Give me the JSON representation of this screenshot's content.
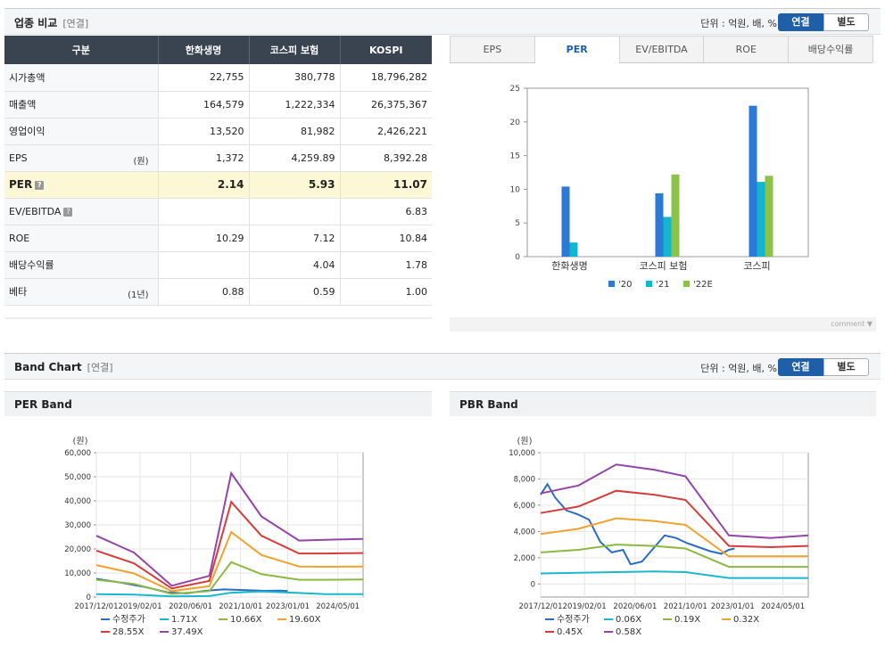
{
  "compare": {
    "title": "업종 비교",
    "sub": "[연결]",
    "unit": "단위 : 억원, 배, %",
    "toggle_on": "연결",
    "toggle_off": "별도",
    "headers": [
      "구분",
      "한화생명",
      "코스피 보험",
      "KOSPI"
    ],
    "rows": [
      {
        "label": "시가총액",
        "note": "",
        "values": [
          "22,755",
          "380,778",
          "18,796,282"
        ]
      },
      {
        "label": "매출액",
        "note": "",
        "values": [
          "164,579",
          "1,222,334",
          "26,375,367"
        ]
      },
      {
        "label": "영업이익",
        "note": "",
        "values": [
          "13,520",
          "81,982",
          "2,426,221"
        ]
      },
      {
        "label": "EPS",
        "note": "(원)",
        "values": [
          "1,372",
          "4,259.89",
          "8,392.28"
        ]
      },
      {
        "label": "PER",
        "note": "",
        "values": [
          "2.14",
          "5.93",
          "11.07"
        ]
      },
      {
        "label": "EV/EBITDA",
        "note": "",
        "values": [
          "",
          "",
          "6.83"
        ]
      },
      {
        "label": "ROE",
        "note": "",
        "values": [
          "10.29",
          "7.12",
          "10.84"
        ]
      },
      {
        "label": "배당수익률",
        "note": "",
        "values": [
          "",
          "4.04",
          "1.78"
        ]
      },
      {
        "label": "베타",
        "note": "(1년)",
        "values": [
          "0.88",
          "0.59",
          "1.00"
        ]
      }
    ],
    "help_icon": "?",
    "tabs": [
      "EPS",
      "PER",
      "EV/EBITDA",
      "ROE",
      "배당수익률"
    ],
    "active_tab": "PER",
    "comment": "comment ▼"
  },
  "band": {
    "title": "Band Chart",
    "sub": "[연결]",
    "unit": "단위 : 억원, 배, %",
    "toggle_on": "연결",
    "toggle_off": "별도",
    "per_title": "PER Band",
    "pbr_title": "PBR Band"
  },
  "colors": {
    "navy": "#3a4350",
    "accent": "#1f5fa8",
    "bar20": "#2a7ad6",
    "bar21": "#11b7d0",
    "bar22": "#8dc24a",
    "price": "#2b6cc4",
    "b1": "#1ab8cc",
    "b2": "#8db843",
    "b3": "#f0a22e",
    "b4": "#d63c3c",
    "b5": "#9346a8"
  },
  "chart_data": [
    {
      "type": "bar",
      "title": "PER",
      "categories": [
        "한화생명",
        "코스피  보험",
        "코스피"
      ],
      "series": [
        {
          "name": "'20",
          "values": [
            10.4,
            9.4,
            22.4
          ]
        },
        {
          "name": "'21",
          "values": [
            2.1,
            5.9,
            11.1
          ]
        },
        {
          "name": "'22E",
          "values": [
            null,
            12.2,
            12.0
          ]
        }
      ],
      "ylim": [
        0,
        25
      ],
      "yticks": [
        0,
        5,
        10,
        15,
        20,
        25
      ],
      "legend": "bottom"
    },
    {
      "type": "line",
      "title": "PER Band",
      "ylabel": "(원)",
      "ylim": [
        0,
        60000
      ],
      "yticks": [
        0,
        10000,
        20000,
        30000,
        40000,
        50000,
        60000
      ],
      "ytick_labels": [
        "0",
        "10,000",
        "20,000",
        "30,000",
        "40,000",
        "50,000",
        "60,000"
      ],
      "xlim": [
        2017.92,
        2025.0
      ],
      "xticks": [
        2017.92,
        2019.08,
        2020.42,
        2021.75,
        2023.0,
        2024.33
      ],
      "xtick_labels": [
        "2017/12/01",
        "2019/02/01",
        "2020/06/01",
        "2021/10/01",
        "2023/01/01",
        "2024/05/01"
      ],
      "x": [
        2017.92,
        2018.92,
        2019.92,
        2020.92,
        2021.5,
        2022.3,
        2023.3,
        2024.0,
        2025.0
      ],
      "series": [
        {
          "name": "수정주가",
          "x": [
            2017.92,
            2018.5,
            2019.2,
            2019.8,
            2020.3,
            2020.8,
            2021.3,
            2021.9,
            2022.4,
            2022.8,
            2023.0
          ],
          "values": [
            7600,
            6200,
            4200,
            2000,
            1500,
            2600,
            3200,
            2900,
            2600,
            2700,
            2500
          ]
        },
        {
          "name": "1.71X",
          "values": [
            1200,
            1000,
            300,
            400,
            1800,
            2300,
            1700,
            1200,
            1200
          ]
        },
        {
          "name": "10.66X",
          "values": [
            7200,
            5500,
            1300,
            2500,
            14500,
            9500,
            7200,
            7200,
            7300
          ]
        },
        {
          "name": "19.60X",
          "values": [
            13300,
            9800,
            2500,
            4500,
            27000,
            17500,
            12700,
            12600,
            12700
          ]
        },
        {
          "name": "28.55X",
          "values": [
            19300,
            14000,
            3600,
            6700,
            39500,
            25500,
            18100,
            18100,
            18300
          ]
        },
        {
          "name": "37.49X",
          "values": [
            25500,
            18500,
            4700,
            8800,
            51500,
            33500,
            23500,
            23800,
            24200
          ]
        }
      ],
      "legend": "bottom"
    },
    {
      "type": "line",
      "title": "PBR Band",
      "ylabel": "(원)",
      "ylim": [
        -1000,
        10000
      ],
      "yticks": [
        0,
        2000,
        4000,
        6000,
        8000,
        10000
      ],
      "ytick_labels": [
        "0",
        "2,000",
        "4,000",
        "6,000",
        "8,000",
        "10,000"
      ],
      "xlim": [
        2017.92,
        2025.0
      ],
      "xticks": [
        2017.92,
        2019.08,
        2020.42,
        2021.75,
        2023.0,
        2024.33
      ],
      "xtick_labels": [
        "2017/12/01",
        "2019/02/01",
        "2020/06/01",
        "2021/10/01",
        "2023/01/01",
        "2024/05/01"
      ],
      "x": [
        2017.92,
        2018.92,
        2019.92,
        2020.92,
        2021.75,
        2022.9,
        2024.0,
        2025.0
      ],
      "series": [
        {
          "name": "수정주가",
          "x": [
            2017.92,
            2018.1,
            2018.3,
            2018.6,
            2018.9,
            2019.2,
            2019.5,
            2019.8,
            2020.1,
            2020.3,
            2020.6,
            2020.9,
            2021.2,
            2021.5,
            2021.8,
            2022.1,
            2022.4,
            2022.7,
            2022.9,
            2023.05
          ],
          "values": [
            6800,
            7600,
            6600,
            5600,
            5300,
            4900,
            3200,
            2400,
            2600,
            1500,
            1700,
            2700,
            3700,
            3500,
            3100,
            2800,
            2500,
            2300,
            2600,
            2700
          ]
        },
        {
          "name": "0.06X",
          "values": [
            800,
            850,
            900,
            950,
            900,
            450,
            450,
            450
          ]
        },
        {
          "name": "0.19X",
          "values": [
            2400,
            2600,
            3000,
            2900,
            2700,
            1300,
            1300,
            1300
          ]
        },
        {
          "name": "0.32X",
          "values": [
            3800,
            4200,
            5000,
            4800,
            4500,
            2100,
            2100,
            2100
          ]
        },
        {
          "name": "0.45X",
          "values": [
            5400,
            5900,
            7100,
            6800,
            6400,
            2900,
            2800,
            2900
          ]
        },
        {
          "name": "0.58X",
          "values": [
            6900,
            7500,
            9100,
            8700,
            8200,
            3700,
            3500,
            3700
          ]
        }
      ],
      "legend": "bottom"
    }
  ]
}
